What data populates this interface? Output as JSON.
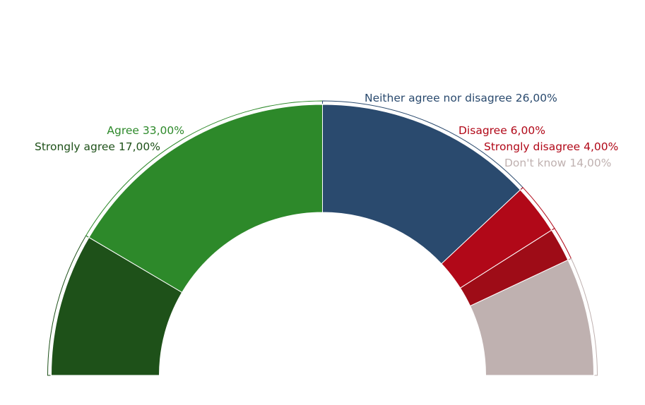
{
  "chart_data": {
    "type": "pie",
    "subtype": "half-donut",
    "categories": [
      "Strongly agree",
      "Agree",
      "Neither agree nor disagree",
      "Disagree",
      "Strongly disagree",
      "Don't know"
    ],
    "values": [
      17,
      33,
      26,
      6,
      4,
      14
    ],
    "value_labels": [
      "17,00%",
      "33,00%",
      "26,00%",
      "6,00%",
      "4,00%",
      "14,00%"
    ],
    "label_texts": [
      "Strongly agree 17,00%",
      "Agree 33,00%",
      "Neither agree nor disagree 26,00%",
      "Disagree 6,00%",
      "Strongly disagree 4,00%",
      "Don't know 14,00%"
    ],
    "colors": [
      "#1e5119",
      "#2d892a",
      "#2a4a6e",
      "#b10818",
      "#9e0c17",
      "#bfb1b0"
    ],
    "label_colors": [
      "#1e5119",
      "#2d892a",
      "#2a4a6e",
      "#b10818",
      "#b10818",
      "#bfb1b0"
    ],
    "start": "left",
    "direction": "clockwise",
    "legend": "none"
  }
}
